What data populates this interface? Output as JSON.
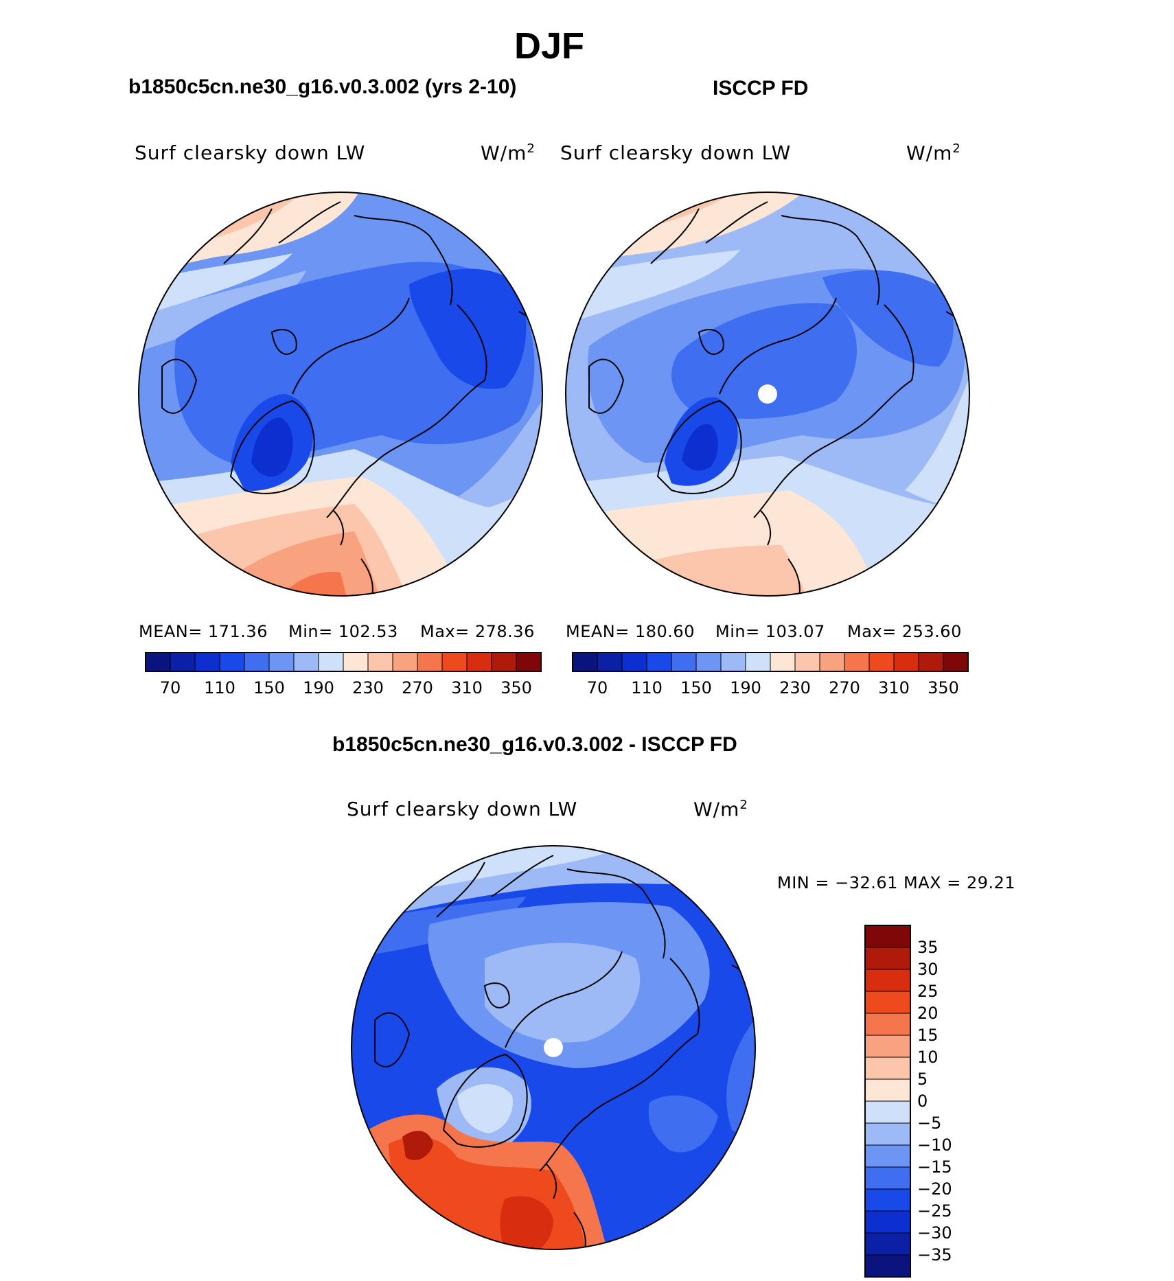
{
  "title": "DJF",
  "panels": [
    {
      "title": "b1850c5cn.ne30_g16.v0.3.002 (yrs 2-10)",
      "left_label": "Surf clearsky down LW",
      "units": "W/m",
      "units_sup": "2",
      "stats": {
        "mean": "MEAN=  171.36",
        "min": "Min=  102.53",
        "max": "Max=  278.36"
      }
    },
    {
      "title": "ISCCP FD",
      "left_label": "Surf clearsky down LW",
      "units": "W/m",
      "units_sup": "2",
      "stats": {
        "mean": "MEAN=  180.60",
        "min": "Min=  103.07",
        "max": "Max=  253.60"
      }
    },
    {
      "title": "b1850c5cn.ne30_g16.v0.3.002 - ISCCP FD",
      "left_label": "Surf clearsky down LW",
      "units": "W/m",
      "units_sup": "2",
      "stats": {
        "minmax": "MIN = −32.61 MAX =   29.21"
      }
    }
  ],
  "chart_data": [
    {
      "type": "heatmap",
      "projection": "polar stereographic (North Pole)",
      "title": "b1850c5cn.ne30_g16.v0.3.002 (yrs 2-10)",
      "variable": "Surf clearsky down LW",
      "units": "W/m2",
      "mean": 171.36,
      "min": 102.53,
      "max": 278.36,
      "colorbar": {
        "orientation": "horizontal",
        "levels": [
          70,
          90,
          110,
          130,
          150,
          170,
          190,
          210,
          230,
          250,
          270,
          290,
          310,
          330,
          350
        ],
        "tick_labels": [
          "70",
          "110",
          "150",
          "190",
          "230",
          "270",
          "310",
          "350"
        ],
        "colors": [
          "#0b137f",
          "#0c1fa7",
          "#0e2fd0",
          "#1a49ea",
          "#3f6ff0",
          "#6d95f3",
          "#9dbaf6",
          "#cfe0fb",
          "#fde6d6",
          "#fcc6ad",
          "#f9a27f",
          "#f5764c",
          "#ef4a1e",
          "#d82e0f",
          "#b01a0a",
          "#7f0707"
        ]
      }
    },
    {
      "type": "heatmap",
      "projection": "polar stereographic (North Pole)",
      "title": "ISCCP FD",
      "variable": "Surf clearsky down LW",
      "units": "W/m2",
      "mean": 180.6,
      "min": 103.07,
      "max": 253.6,
      "colorbar": {
        "orientation": "horizontal",
        "levels": [
          70,
          90,
          110,
          130,
          150,
          170,
          190,
          210,
          230,
          250,
          270,
          290,
          310,
          330,
          350
        ],
        "tick_labels": [
          "70",
          "110",
          "150",
          "190",
          "230",
          "270",
          "310",
          "350"
        ],
        "colors": [
          "#0b137f",
          "#0c1fa7",
          "#0e2fd0",
          "#1a49ea",
          "#3f6ff0",
          "#6d95f3",
          "#9dbaf6",
          "#cfe0fb",
          "#fde6d6",
          "#fcc6ad",
          "#f9a27f",
          "#f5764c",
          "#ef4a1e",
          "#d82e0f",
          "#b01a0a",
          "#7f0707"
        ]
      }
    },
    {
      "type": "heatmap",
      "projection": "polar stereographic (North Pole)",
      "title": "b1850c5cn.ne30_g16.v0.3.002 - ISCCP FD",
      "variable": "Surf clearsky down LW",
      "units": "W/m2",
      "min": -32.61,
      "max": 29.21,
      "colorbar": {
        "orientation": "vertical",
        "levels": [
          35,
          30,
          25,
          20,
          15,
          10,
          5,
          0,
          -5,
          -10,
          -15,
          -20,
          -25,
          -30,
          -35
        ],
        "tick_labels": [
          "35",
          "30",
          "25",
          "20",
          "15",
          "10",
          "5",
          "0",
          "−5",
          "−10",
          "−15",
          "−20",
          "−25",
          "−30",
          "−35"
        ],
        "colors": [
          "#7f0707",
          "#b01a0a",
          "#d82e0f",
          "#ef4a1e",
          "#f5764c",
          "#f9a27f",
          "#fcc6ad",
          "#fde6d6",
          "#cfe0fb",
          "#9dbaf6",
          "#6d95f3",
          "#3f6ff0",
          "#1a49ea",
          "#0e2fd0",
          "#0c1fa7",
          "#0b137f"
        ]
      }
    }
  ]
}
